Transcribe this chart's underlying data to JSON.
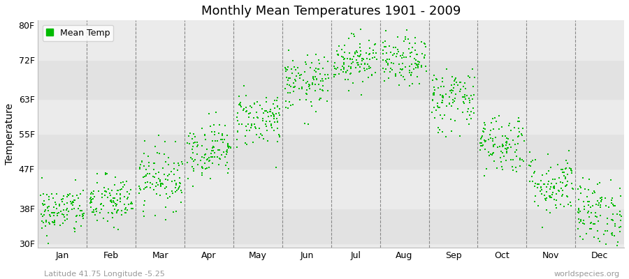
{
  "title": "Monthly Mean Temperatures 1901 - 2009",
  "ylabel": "Temperature",
  "yticks": [
    30,
    38,
    47,
    55,
    63,
    72,
    80
  ],
  "ytick_labels": [
    "30F",
    "38F",
    "47F",
    "55F",
    "63F",
    "72F",
    "80F"
  ],
  "ylim": [
    29,
    81
  ],
  "months": [
    "Jan",
    "Feb",
    "Mar",
    "Apr",
    "May",
    "Jun",
    "Jul",
    "Aug",
    "Sep",
    "Oct",
    "Nov",
    "Dec"
  ],
  "xlim": [
    0.0,
    12.0
  ],
  "dot_color": "#00bb00",
  "bg_light": "#ebebeb",
  "bg_white": "#f7f7f7",
  "subtitle": "Latitude 41.75 Longitude -5.25",
  "watermark": "worldspecies.org",
  "n_years": 109,
  "monthly_mean_F": [
    37.4,
    39.5,
    45.0,
    51.5,
    58.5,
    66.5,
    72.0,
    71.5,
    63.0,
    53.0,
    43.5,
    37.0
  ],
  "monthly_std_F": [
    2.8,
    3.0,
    3.5,
    3.2,
    3.2,
    3.2,
    2.8,
    2.8,
    3.8,
    3.5,
    3.5,
    3.8
  ],
  "seed": 42
}
